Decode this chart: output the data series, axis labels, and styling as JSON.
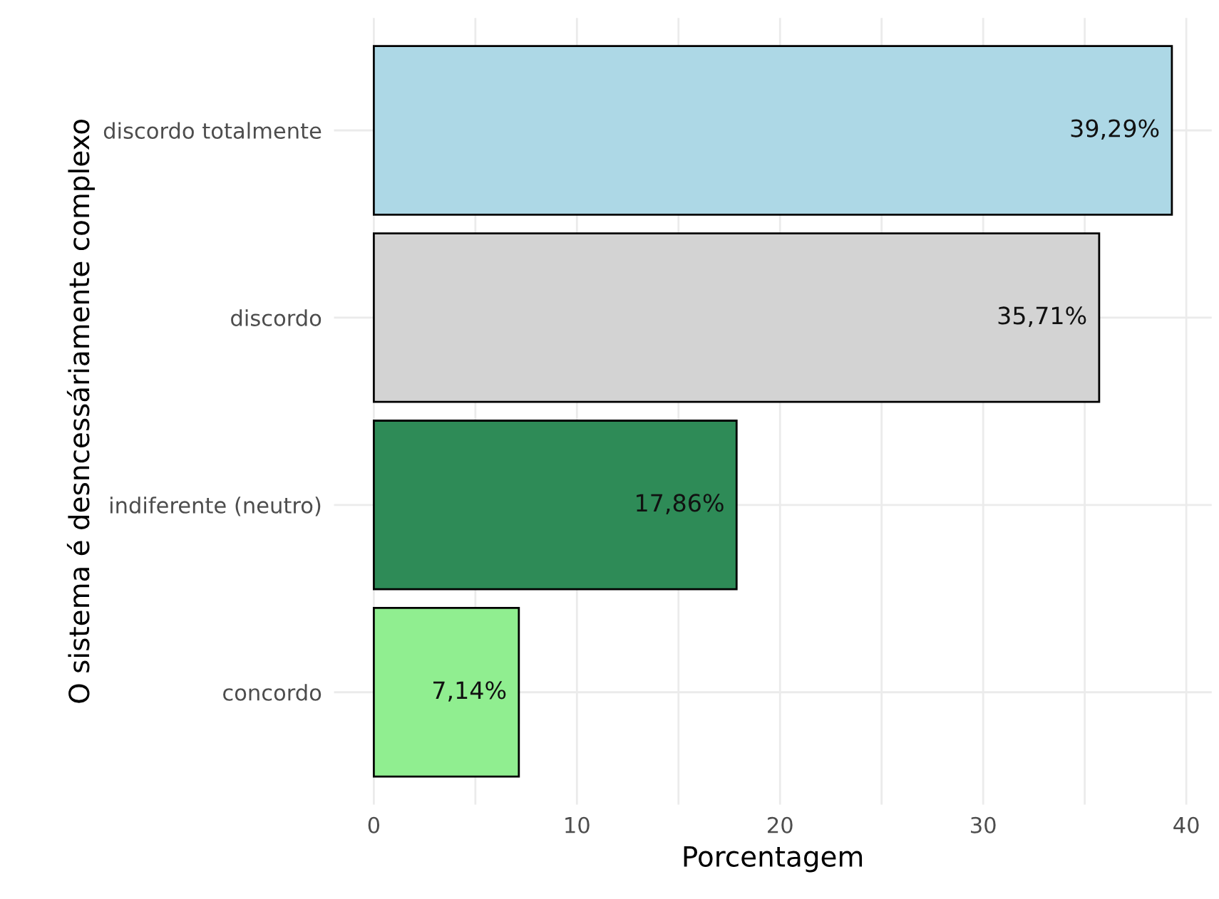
{
  "chart_data": {
    "type": "bar",
    "orientation": "horizontal",
    "categories": [
      "discordo totalmente",
      "discordo",
      "indiferente (neutro)",
      "concordo"
    ],
    "values": [
      39.29,
      35.71,
      17.86,
      7.14
    ],
    "colors": [
      "#add8e6",
      "#d3d3d3",
      "#2e8b57",
      "#90ee90"
    ],
    "value_labels": [
      "39,29%",
      "35,71%",
      "17,86%",
      "7,14%"
    ],
    "xlabel": "Porcentagem",
    "ylabel": "O sistema é desncessáriamente complexo",
    "xlim": [
      -1.96,
      41.25
    ],
    "xticks": [
      0,
      {
        "value": 5,
        "label": null
      },
      10,
      {
        "value": 15,
        "label": null
      },
      20,
      {
        "value": 25,
        "label": null
      },
      30,
      {
        "value": 35,
        "label": null
      },
      40
    ],
    "grid": true
  }
}
